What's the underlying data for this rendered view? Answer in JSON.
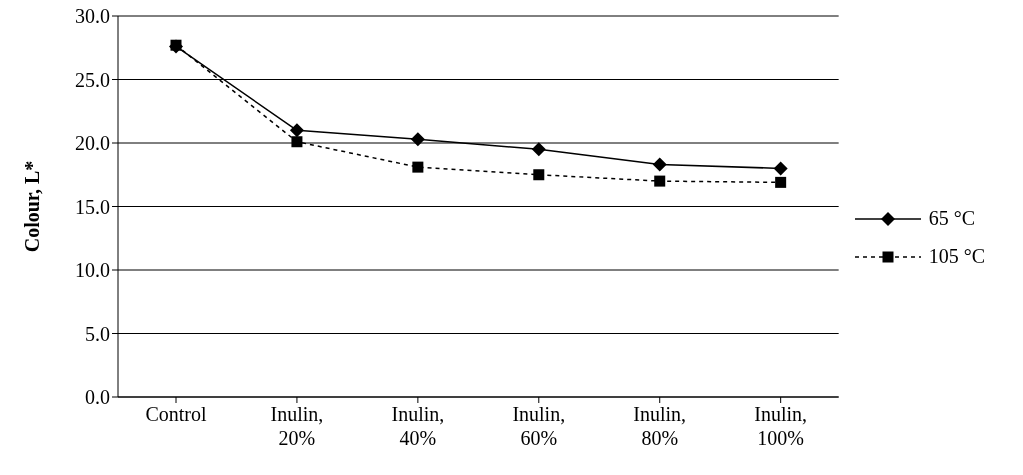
{
  "chart_data": {
    "type": "line",
    "ylabel": "Colour, L*",
    "categories": [
      "Control",
      "Inulin, 20%",
      "Inulin, 40%",
      "Inulin, 60%",
      "Inulin, 80%",
      "Inulin, 100%"
    ],
    "series": [
      {
        "name": "65 °C",
        "color": "#000000",
        "marker": "diamond",
        "line_style": "solid",
        "values": [
          27.6,
          21.0,
          20.3,
          19.5,
          18.3,
          18.0
        ]
      },
      {
        "name": "105 °C",
        "color": "#000000",
        "marker": "square",
        "line_style": "dashed",
        "values": [
          27.7,
          20.1,
          18.1,
          17.5,
          17.0,
          16.9
        ]
      }
    ],
    "ylim": [
      0,
      30
    ],
    "yticks": [
      {
        "value": 0,
        "label": "0.0"
      },
      {
        "value": 5,
        "label": "5.0"
      },
      {
        "value": 10,
        "label": "10.0"
      },
      {
        "value": 15,
        "label": "15.0"
      },
      {
        "value": 20,
        "label": "20.0"
      },
      {
        "value": 25,
        "label": "25.0"
      },
      {
        "value": 30,
        "label": "30.0"
      }
    ],
    "grid": "y",
    "legend": "right"
  }
}
